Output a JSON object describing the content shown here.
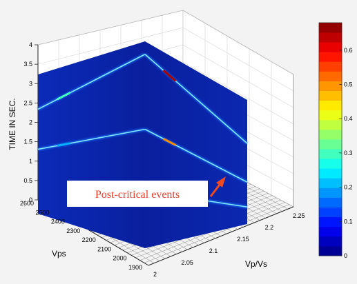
{
  "chart_data": {
    "type": "3d-surface-slices",
    "zlabel": "TIME IN SEC.",
    "xlabel": "Vps",
    "ylabel": "Vp/Vs",
    "z_ticks": [
      "0",
      "0.5",
      "1",
      "1.5",
      "2",
      "2.5",
      "3",
      "3.5",
      "4"
    ],
    "x_ticks": [
      "2600",
      "2500",
      "2400",
      "2300",
      "2200",
      "2100",
      "2000",
      "1900"
    ],
    "y_ticks": [
      "2",
      "2.05",
      "2.1",
      "2.15",
      "2.2",
      "2.25"
    ],
    "zlim": [
      0,
      4
    ],
    "xlim": [
      1900,
      2600
    ],
    "ylim": [
      2,
      2.25
    ],
    "grid": true,
    "colorbar": {
      "ticks": [
        "0",
        "0.1",
        "0.2",
        "0.3",
        "0.4",
        "0.5",
        "0.6"
      ],
      "range": [
        0,
        0.68
      ],
      "colormap": "jet"
    },
    "annotation": "Post-critical events",
    "slice_events": [
      {
        "slice": "Vps",
        "t_start": 3.0,
        "t_end": 3.75,
        "peak": 0.3
      },
      {
        "slice": "Vps",
        "t_start": 1.85,
        "t_end": 2.3,
        "peak": 0.2
      },
      {
        "slice": "Vp/Vs",
        "t_start": 3.75,
        "t_end": 2.6,
        "peak": 0.65
      },
      {
        "slice": "Vp/Vs",
        "t_start": 2.3,
        "t_end": 1.35,
        "peak": 0.5
      },
      {
        "slice": "Vp/Vs",
        "t_start": 1.1,
        "t_end": 0.55,
        "peak": 0.25
      }
    ],
    "colors": {
      "background": "#0a1f9e",
      "annotation": "#e8402a",
      "arrow": "#f04a1e"
    }
  }
}
